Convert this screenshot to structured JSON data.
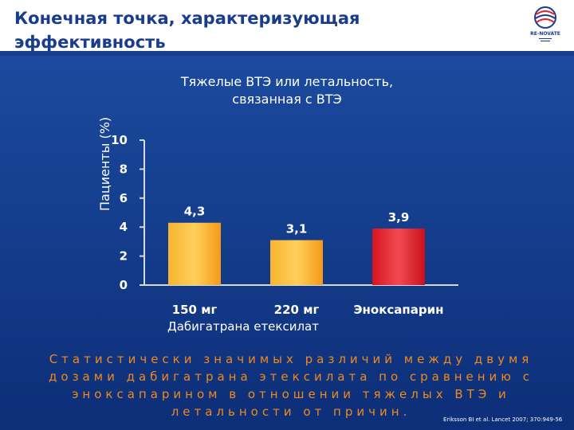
{
  "header": {
    "title": "Конечная точка, характеризующая эффективность",
    "logo_text": "RE-NOVATE",
    "colors": {
      "title": "#1a3c8c",
      "background": "#0f2f7a"
    }
  },
  "chart_data": {
    "type": "bar",
    "title": "Тяжелые ВТЭ или летальность, связанная с ВТЭ",
    "ylabel": "Пациенты (%)",
    "xlabel": "",
    "ylim": [
      0,
      10
    ],
    "yticks": [
      0,
      2,
      4,
      6,
      8,
      10
    ],
    "categories": [
      "150 мг",
      "220 мг",
      "Эноксапарин"
    ],
    "values": [
      4.3,
      3.1,
      3.9
    ],
    "value_labels": [
      "4,3",
      "3,1",
      "3,9"
    ],
    "bar_colors": [
      "#f6a21c",
      "#f6a21c",
      "#e8202a"
    ],
    "group_label": "Дабигатрана етексилат",
    "grid": false,
    "legend": "none"
  },
  "footnote": "Статистически значимых различий между двумя дозами дабигатрана этексилата по сравнению с эноксапарином в отношении тяжелых ВТЭ и летальности от причин.",
  "citation": "Eriksson BI et al. Lancet 2007; 370:949-56"
}
